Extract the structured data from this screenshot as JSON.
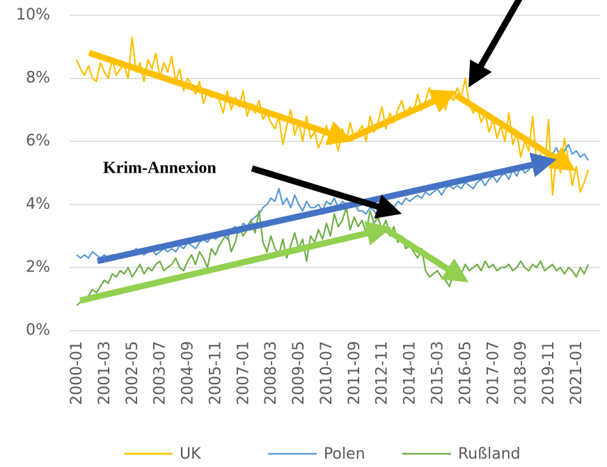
{
  "chart_data": {
    "type": "line",
    "annotation": "Krim-Annexion",
    "categories": [
      "2000-01",
      null,
      null,
      null,
      null,
      null,
      null,
      "2001-03",
      null,
      null,
      null,
      null,
      null,
      null,
      "2002-05",
      null,
      null,
      null,
      null,
      null,
      null,
      "2003-07",
      null,
      null,
      null,
      null,
      null,
      null,
      "2004-09",
      null,
      null,
      null,
      null,
      null,
      null,
      "2005-11",
      null,
      null,
      null,
      null,
      null,
      null,
      "2007-01",
      null,
      null,
      null,
      null,
      null,
      null,
      "2008-03",
      null,
      null,
      null,
      null,
      null,
      null,
      "2009-05",
      null,
      null,
      null,
      null,
      null,
      null,
      "2010-07",
      null,
      null,
      null,
      null,
      null,
      null,
      "2011-09",
      null,
      null,
      null,
      null,
      null,
      null,
      "2012-11",
      null,
      null,
      null,
      null,
      null,
      null,
      "2014-01",
      null,
      null,
      null,
      null,
      null,
      null,
      "2015-03",
      null,
      null,
      null,
      null,
      null,
      null,
      "2016-05",
      null,
      null,
      null,
      null,
      null,
      null,
      "2017-07",
      null,
      null,
      null,
      null,
      null,
      null,
      "2018-09",
      null,
      null,
      null,
      null,
      null,
      null,
      "2019-11",
      null,
      null,
      null,
      null,
      null,
      null,
      "2021-01",
      null,
      null,
      null
    ],
    "series": [
      {
        "name": "UK",
        "color": "#ffc000",
        "values": [
          8.6,
          8.3,
          8.1,
          8.4,
          8.0,
          7.9,
          8.5,
          8.2,
          8.0,
          8.6,
          8.1,
          8.3,
          8.4,
          8.0,
          9.3,
          8.2,
          8.5,
          7.9,
          8.6,
          8.3,
          8.8,
          8.0,
          8.5,
          8.2,
          8.7,
          7.9,
          8.3,
          7.6,
          8.0,
          7.8,
          7.5,
          7.9,
          7.2,
          7.6,
          7.4,
          7.5,
          7.3,
          6.9,
          7.6,
          7.0,
          7.4,
          7.1,
          7.6,
          6.8,
          7.2,
          6.9,
          7.3,
          6.7,
          6.9,
          6.6,
          6.4,
          6.8,
          5.9,
          6.5,
          7.0,
          6.2,
          6.6,
          6.0,
          6.8,
          6.1,
          6.3,
          5.8,
          6.1,
          6.5,
          5.9,
          6.2,
          5.7,
          6.4,
          6.0,
          6.6,
          6.1,
          6.3,
          6.5,
          6.0,
          6.8,
          6.3,
          6.6,
          7.1,
          6.4,
          6.9,
          6.6,
          7.0,
          7.3,
          6.8,
          7.1,
          6.9,
          7.5,
          7.0,
          7.3,
          7.7,
          7.2,
          7.4,
          7.6,
          7.0,
          7.5,
          7.3,
          7.7,
          7.4,
          8.0,
          7.2,
          6.9,
          7.1,
          6.6,
          6.9,
          6.3,
          6.7,
          6.1,
          6.5,
          6.0,
          6.9,
          5.9,
          6.3,
          5.5,
          6.0,
          5.7,
          6.8,
          5.3,
          5.6,
          5.2,
          6.7,
          4.3,
          5.6,
          5.0,
          6.1,
          5.4,
          4.6,
          5.2,
          4.4,
          4.7,
          5.1
        ]
      },
      {
        "name": "Polen",
        "color": "#5b9bd5",
        "values": [
          2.4,
          2.3,
          2.4,
          2.3,
          2.5,
          2.4,
          2.3,
          2.4,
          2.3,
          2.4,
          2.4,
          2.3,
          2.4,
          2.5,
          2.4,
          2.6,
          2.5,
          2.4,
          2.5,
          2.6,
          2.4,
          2.5,
          2.6,
          2.5,
          2.6,
          2.5,
          2.7,
          2.6,
          2.8,
          2.7,
          2.6,
          2.8,
          2.9,
          2.8,
          3.0,
          2.9,
          3.0,
          3.1,
          2.9,
          3.2,
          3.3,
          3.1,
          3.4,
          3.3,
          3.5,
          3.6,
          3.7,
          3.9,
          4.0,
          4.2,
          4.1,
          4.5,
          4.0,
          4.2,
          3.9,
          4.3,
          4.0,
          3.8,
          4.1,
          3.9,
          3.9,
          4.0,
          3.8,
          4.1,
          4.0,
          4.2,
          3.9,
          4.1,
          4.0,
          3.9,
          4.1,
          3.8,
          3.8,
          3.7,
          3.9,
          3.8,
          3.6,
          3.9,
          3.8,
          4.0,
          3.9,
          4.1,
          4.0,
          4.2,
          4.1,
          4.2,
          4.3,
          4.2,
          4.4,
          4.3,
          4.4,
          4.5,
          4.3,
          4.5,
          4.6,
          4.5,
          4.6,
          4.5,
          4.7,
          4.6,
          4.5,
          4.7,
          4.8,
          4.6,
          4.8,
          4.9,
          4.7,
          4.9,
          5.0,
          4.8,
          5.1,
          4.9,
          5.2,
          5.0,
          5.1,
          5.3,
          5.4,
          5.2,
          5.5,
          5.3,
          5.6,
          5.8,
          5.5,
          5.7,
          5.9,
          5.6,
          5.7,
          5.5,
          5.6,
          5.4
        ]
      },
      {
        "name": "Rußland",
        "color": "#70ad47",
        "values": [
          0.8,
          0.9,
          1.0,
          1.1,
          1.3,
          1.2,
          1.4,
          1.6,
          1.5,
          1.8,
          1.7,
          1.9,
          1.8,
          2.0,
          1.7,
          1.9,
          2.1,
          1.8,
          2.0,
          1.9,
          2.1,
          2.2,
          1.9,
          2.0,
          2.1,
          2.3,
          2.0,
          1.9,
          2.2,
          2.4,
          2.1,
          2.5,
          2.3,
          2.0,
          2.6,
          2.4,
          2.7,
          2.9,
          3.1,
          2.5,
          2.8,
          3.3,
          3.0,
          3.2,
          3.5,
          3.1,
          3.8,
          2.8,
          2.5,
          3.0,
          2.6,
          2.4,
          2.9,
          2.3,
          2.7,
          3.1,
          2.6,
          2.9,
          2.2,
          3.0,
          2.8,
          3.2,
          2.9,
          3.4,
          3.0,
          3.7,
          3.3,
          3.5,
          3.9,
          3.2,
          3.6,
          3.3,
          3.5,
          3.1,
          3.8,
          3.4,
          3.6,
          3.2,
          3.5,
          3.0,
          3.3,
          2.8,
          3.0,
          2.6,
          2.7,
          2.5,
          2.3,
          2.6,
          1.9,
          1.7,
          1.8,
          1.9,
          1.7,
          1.6,
          1.4,
          1.8,
          2.0,
          1.8,
          2.1,
          1.9,
          2.0,
          2.1,
          1.9,
          2.2,
          2.0,
          2.1,
          1.9,
          2.0,
          2.0,
          2.1,
          1.9,
          2.0,
          2.2,
          2.0,
          1.9,
          2.1,
          2.0,
          2.2,
          1.9,
          2.0,
          2.1,
          1.9,
          2.0,
          1.8,
          2.0,
          1.9,
          1.7,
          2.0,
          1.8,
          2.1
        ]
      }
    ],
    "ylim": [
      0,
      10
    ],
    "yticks": [
      {
        "value": 0,
        "label": "0%"
      },
      {
        "value": 2,
        "label": "2%"
      },
      {
        "value": 4,
        "label": "4%"
      },
      {
        "value": 6,
        "label": "6%"
      },
      {
        "value": 8,
        "label": "8%"
      },
      {
        "value": 10,
        "label": "10%"
      }
    ],
    "grid": true
  }
}
